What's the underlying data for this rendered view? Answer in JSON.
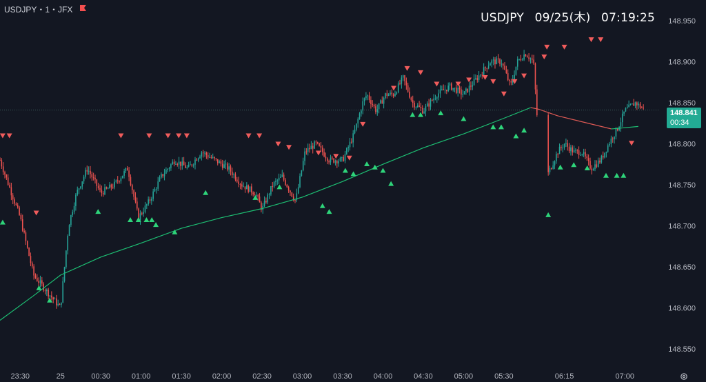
{
  "symbol_line": "USDJPY・1・JFX",
  "header": {
    "symbol": "USDJPY",
    "date": "09/25(木)",
    "time": "07:19:25"
  },
  "price_badge": {
    "price": "148.841",
    "countdown": "00:34"
  },
  "colors": {
    "background": "#131722",
    "up": "#26a69a",
    "down": "#ef5350",
    "ma_line": "#1dbf73",
    "ma_down": "#e05a55",
    "buy_signal": "#2ed47a",
    "sell_signal": "#f05c5c",
    "axis_text": "#b2b5be",
    "badge": "#22ab94",
    "flag": "#f44f4f"
  },
  "icons": {
    "flag": "flag-icon",
    "settings": "gear-icon"
  },
  "chart_data": {
    "type": "line",
    "title": "",
    "xlabel": "",
    "ylabel": "",
    "ylim": [
      148.525,
      148.975
    ],
    "y_ticks": [
      "148.950",
      "148.900",
      "148.850",
      "148.800",
      "148.750",
      "148.700",
      "148.650",
      "148.600",
      "148.550"
    ],
    "y_tick_values": [
      148.95,
      148.9,
      148.85,
      148.8,
      148.75,
      148.7,
      148.65,
      148.6,
      148.55
    ],
    "x_ticks": [
      "23:30",
      "25",
      "00:30",
      "01:00",
      "01:30",
      "02:00",
      "02:30",
      "03:00",
      "03:30",
      "04:00",
      "04:30",
      "05:00",
      "05:30",
      "06:15",
      "07:00"
    ],
    "x_tick_minutes": [
      -30,
      0,
      30,
      60,
      90,
      120,
      150,
      180,
      210,
      240,
      270,
      300,
      330,
      375,
      420
    ],
    "xlim_minutes": [
      -45,
      445
    ],
    "series": [
      {
        "type": "price",
        "x_minutes": [
          -45,
          -30,
          -20,
          -10,
          0,
          6,
          12,
          20,
          30,
          40,
          50,
          58,
          66,
          75,
          85,
          95,
          105,
          115,
          125,
          135,
          145,
          150,
          158,
          165,
          175,
          182,
          190,
          200,
          210,
          218,
          225,
          228,
          235,
          242,
          248,
          255,
          262,
          270,
          280,
          290,
          300,
          310,
          320,
          328,
          335,
          340,
          346,
          352,
          356,
          362,
          370,
          375,
          382,
          388,
          395,
          402,
          408,
          415,
          420,
          428,
          434
        ],
        "values": [
          148.78,
          148.71,
          148.64,
          148.62,
          148.6,
          148.7,
          148.74,
          148.77,
          148.74,
          148.75,
          148.77,
          148.71,
          148.73,
          148.76,
          148.78,
          148.77,
          148.79,
          148.78,
          148.77,
          148.75,
          148.74,
          148.72,
          148.75,
          148.76,
          148.73,
          148.79,
          148.8,
          148.78,
          148.78,
          148.81,
          148.85,
          148.86,
          148.84,
          148.86,
          148.86,
          148.88,
          148.85,
          148.84,
          148.86,
          148.87,
          148.86,
          148.88,
          148.9,
          148.9,
          148.87,
          148.9,
          148.91,
          148.9,
          148.8,
          148.76,
          148.79,
          148.8,
          148.79,
          148.79,
          148.77,
          148.78,
          148.8,
          148.82,
          148.84,
          148.85,
          148.842
        ]
      },
      {
        "type": "moving_average",
        "x_minutes": [
          -45,
          -20,
          0,
          30,
          60,
          90,
          120,
          150,
          180,
          210,
          240,
          270,
          300,
          330,
          350,
          356,
          370,
          390,
          410,
          430
        ],
        "values": [
          148.585,
          148.615,
          148.64,
          148.662,
          148.679,
          148.697,
          148.71,
          148.721,
          148.735,
          148.754,
          148.775,
          148.795,
          148.812,
          148.831,
          148.844,
          148.842,
          148.834,
          148.826,
          148.818,
          148.821
        ]
      }
    ],
    "buy_signals_minutes": [
      -43,
      -16,
      -8,
      28,
      52,
      58,
      64,
      68,
      71,
      85,
      108,
      145,
      163,
      195,
      200,
      212,
      218,
      228,
      234,
      240,
      246,
      262,
      268,
      283,
      300,
      322,
      328,
      339,
      345,
      363,
      372,
      382,
      392,
      406,
      414,
      419
    ],
    "buy_signals_values": [
      148.705,
      148.625,
      148.61,
      148.718,
      148.708,
      148.708,
      148.708,
      148.708,
      148.702,
      148.693,
      148.741,
      148.735,
      148.748,
      148.725,
      148.718,
      148.768,
      148.764,
      148.776,
      148.772,
      148.768,
      148.752,
      148.836,
      148.836,
      148.838,
      148.831,
      148.821,
      148.821,
      148.81,
      148.817,
      148.714,
      148.772,
      148.775,
      148.771,
      148.762,
      148.762,
      148.762
    ],
    "sell_signals_minutes": [
      -43,
      -38,
      -18,
      45,
      66,
      80,
      88,
      94,
      140,
      148,
      162,
      170,
      192,
      205,
      215,
      225,
      248,
      258,
      268,
      280,
      296,
      304,
      316,
      322,
      330,
      338,
      345,
      360,
      362,
      375,
      395,
      402,
      425
    ],
    "sell_signals_values": [
      148.81,
      148.81,
      148.716,
      148.81,
      148.81,
      148.81,
      148.81,
      148.81,
      148.81,
      148.81,
      148.8,
      148.796,
      148.789,
      148.785,
      148.783,
      148.824,
      148.868,
      148.892,
      148.887,
      148.873,
      148.873,
      148.878,
      148.881,
      148.876,
      148.861,
      148.876,
      148.883,
      148.906,
      148.918,
      148.918,
      148.927,
      148.927,
      148.801
    ]
  }
}
